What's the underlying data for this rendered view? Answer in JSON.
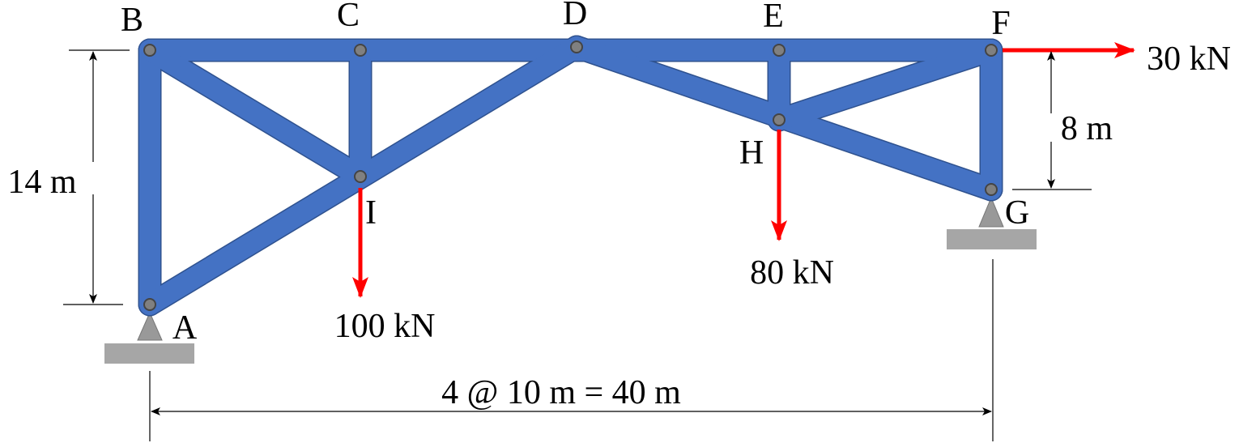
{
  "nodes": [
    {
      "label": "A"
    },
    {
      "label": "B"
    },
    {
      "label": "C"
    },
    {
      "label": "D"
    },
    {
      "label": "E"
    },
    {
      "label": "F"
    },
    {
      "label": "G"
    },
    {
      "label": "H"
    },
    {
      "label": "I"
    }
  ],
  "loads": [
    {
      "label": "100 kN"
    },
    {
      "label": "80 kN"
    },
    {
      "label": "30 kN"
    }
  ],
  "dimensions": [
    {
      "label": "14 m"
    },
    {
      "label": "8 m"
    },
    {
      "label": "4 @ 10 m = 40 m"
    }
  ]
}
